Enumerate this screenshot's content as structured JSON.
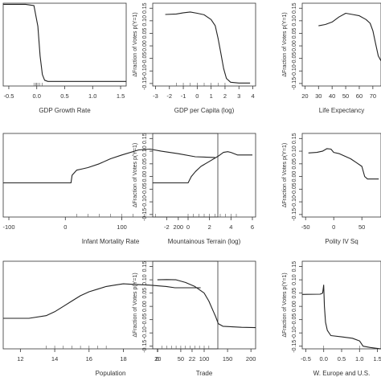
{
  "chart_data": [
    {
      "type": "line",
      "xlabel": "GDP Growth Rate",
      "ylabel": "",
      "xlim": [
        -0.6,
        1.6
      ],
      "ylim": [
        -0.18,
        0.18
      ],
      "xticks": [
        "-0.5",
        "0.0",
        "0.5",
        "1.0",
        "1.5"
      ],
      "xtick_values": [
        -0.5,
        0.0,
        0.5,
        1.0,
        1.5
      ],
      "yticks": [],
      "ytick_values": [],
      "rug": [
        -0.05,
        -0.02,
        0.0,
        0.02,
        0.05,
        0.1
      ],
      "x": [
        -0.6,
        -0.2,
        -0.05,
        0.02,
        0.06,
        0.1,
        0.14,
        0.2,
        1.6
      ],
      "y": [
        0.175,
        0.175,
        0.17,
        0.08,
        -0.05,
        -0.13,
        -0.155,
        -0.16,
        -0.16
      ]
    },
    {
      "type": "line",
      "xlabel": "GDP per Capita (log)",
      "ylabel": "ΔFraction of Votes p(Y=1)",
      "xlim": [
        -3.2,
        4.2
      ],
      "ylim": [
        -0.16,
        0.17
      ],
      "xticks": [
        "-3",
        "-2",
        "-1",
        "0",
        "1",
        "2",
        "3",
        "4"
      ],
      "xtick_values": [
        -3,
        -2,
        -1,
        0,
        1,
        2,
        3,
        4
      ],
      "yticks": [
        "0.15",
        "0.10",
        "0.05",
        "0.00",
        "-0.05",
        "-0.10",
        "-0.15"
      ],
      "ytick_values": [
        0.15,
        0.1,
        0.05,
        0.0,
        -0.05,
        -0.1,
        -0.15
      ],
      "rug": [
        -1.5,
        -1,
        -0.5,
        0,
        0.5,
        1,
        1.5,
        2
      ],
      "x": [
        -2.3,
        -1.5,
        -1.0,
        -0.5,
        0.0,
        0.5,
        1.0,
        1.3,
        1.5,
        1.7,
        1.9,
        2.1,
        2.4,
        3.0,
        3.8
      ],
      "y": [
        0.125,
        0.127,
        0.132,
        0.135,
        0.13,
        0.124,
        0.105,
        0.08,
        0.03,
        -0.03,
        -0.09,
        -0.13,
        -0.145,
        -0.148,
        -0.148
      ]
    },
    {
      "type": "line",
      "xlabel": "Life Expectancy",
      "ylabel": "ΔFraction of Votes p(Y=1)",
      "xlim": [
        18,
        76
      ],
      "ylim": [
        -0.16,
        0.17
      ],
      "xticks": [
        "20",
        "30",
        "40",
        "50",
        "60",
        "70"
      ],
      "xtick_values": [
        20,
        30,
        40,
        50,
        60,
        70
      ],
      "yticks": [
        "0.15",
        "0.10",
        "0.05",
        "0.00",
        "-0.05",
        "-0.10",
        "-0.15"
      ],
      "ytick_values": [
        0.15,
        0.1,
        0.05,
        0.0,
        -0.05,
        -0.1,
        -0.15
      ],
      "rug": [],
      "x": [
        30,
        35,
        40,
        45,
        50,
        55,
        60,
        65,
        68,
        70,
        72,
        74,
        76
      ],
      "y": [
        0.08,
        0.085,
        0.095,
        0.115,
        0.13,
        0.125,
        0.12,
        0.105,
        0.09,
        0.06,
        0.01,
        -0.04,
        -0.06
      ]
    },
    {
      "type": "line",
      "xlabel": "Infant Mortality Rate",
      "ylabel": "",
      "xlim": [
        -110,
        270
      ],
      "ylim": [
        -0.16,
        0.17
      ],
      "xticks": [
        "-100",
        "0",
        "100",
        "200"
      ],
      "xtick_values": [
        -100,
        0,
        100,
        200
      ],
      "yticks": [],
      "ytick_values": [],
      "rug": [
        20,
        40,
        60,
        80,
        100,
        120,
        140,
        160
      ],
      "x": [
        -110,
        10,
        12,
        20,
        30,
        40,
        60,
        80,
        100,
        130,
        150,
        170,
        200,
        230,
        265
      ],
      "y": [
        -0.025,
        -0.025,
        0.005,
        0.025,
        0.03,
        0.035,
        0.05,
        0.07,
        0.085,
        0.105,
        0.108,
        0.1,
        0.09,
        0.078,
        0.075
      ]
    },
    {
      "type": "line",
      "xlabel": "Mountainous Terrain (log)",
      "ylabel": "ΔFraction of Votes p(Y=1)",
      "xlim": [
        -3.3,
        6.3
      ],
      "ylim": [
        -0.16,
        0.17
      ],
      "xticks": [
        "-2",
        "0",
        "2",
        "4",
        "6"
      ],
      "xtick_values": [
        -2,
        0,
        2,
        4,
        6
      ],
      "yticks": [
        "0.15",
        "0.10",
        "0.05",
        "0.00",
        "-0.05",
        "-0.10",
        "-0.15"
      ],
      "ytick_values": [
        0.15,
        0.1,
        0.05,
        0.0,
        -0.05,
        -0.1,
        -0.15
      ],
      "rug": [
        0,
        0.5,
        1,
        1.5,
        2,
        2.5,
        3,
        3.5,
        4,
        4.5
      ],
      "x": [
        -3.3,
        0.0,
        0.3,
        0.7,
        1.2,
        2.0,
        2.8,
        3.3,
        3.7,
        4.0,
        4.6,
        5.0,
        6.0
      ],
      "y": [
        -0.025,
        -0.025,
        0.0,
        0.02,
        0.04,
        0.06,
        0.08,
        0.095,
        0.098,
        0.095,
        0.085,
        0.085,
        0.085
      ]
    },
    {
      "type": "line",
      "xlabel": "Polity IV Sq",
      "ylabel": "ΔFraction of Votes p(Y=1)",
      "xlim": [
        -56,
        84
      ],
      "ylim": [
        -0.16,
        0.17
      ],
      "xticks": [
        "-50",
        "0",
        "50"
      ],
      "xtick_values": [
        -50,
        0,
        50
      ],
      "yticks": [
        "0.15",
        "0.10",
        "0.05",
        "0.00",
        "-0.05",
        "-0.10",
        "-0.15"
      ],
      "ytick_values": [
        0.15,
        0.1,
        0.05,
        0.0,
        -0.05,
        -0.1,
        -0.15
      ],
      "rug": [],
      "x": [
        -45,
        -30,
        -20,
        -12,
        -5,
        0,
        10,
        20,
        30,
        40,
        50,
        55,
        60,
        80
      ],
      "y": [
        0.093,
        0.095,
        0.1,
        0.11,
        0.108,
        0.095,
        0.09,
        0.08,
        0.07,
        0.055,
        0.04,
        0.0,
        -0.01,
        -0.01
      ]
    },
    {
      "type": "line",
      "xlabel": "Population",
      "ylabel": "",
      "xlim": [
        11,
        23.5
      ],
      "ylim": [
        -0.16,
        0.17
      ],
      "xticks": [
        "12",
        "14",
        "16",
        "18",
        "20",
        "22"
      ],
      "xtick_values": [
        12,
        14,
        16,
        18,
        20,
        22
      ],
      "yticks": [],
      "ytick_values": [],
      "rug": [
        13.5,
        14,
        14.5,
        15,
        15.5,
        16,
        16.5,
        17
      ],
      "x": [
        11,
        12.5,
        13.5,
        14,
        14.5,
        15,
        15.5,
        16,
        16.5,
        17,
        17.5,
        18,
        18.5,
        19.5,
        20.5,
        21,
        22.5
      ],
      "y": [
        -0.045,
        -0.045,
        -0.035,
        -0.02,
        0.0,
        0.02,
        0.04,
        0.055,
        0.065,
        0.075,
        0.08,
        0.085,
        0.083,
        0.08,
        0.075,
        0.07,
        0.07
      ]
    },
    {
      "type": "line",
      "xlabel": "Trade",
      "ylabel": "ΔFraction of Votes p(Y=1)",
      "xlim": [
        -10,
        210
      ],
      "ylim": [
        -0.16,
        0.17
      ],
      "xticks": [
        "0",
        "50",
        "100",
        "150",
        "200"
      ],
      "xtick_values": [
        0,
        50,
        100,
        150,
        200
      ],
      "yticks": [
        "0.15",
        "0.10",
        "0.05",
        "0.00",
        "-0.05",
        "-0.10",
        "-0.15"
      ],
      "ytick_values": [
        0.15,
        0.1,
        0.05,
        0.0,
        -0.05,
        -0.1,
        -0.15
      ],
      "rug": [
        10,
        20,
        30,
        40,
        50,
        60,
        70,
        80,
        90,
        100,
        110
      ],
      "x": [
        0,
        20,
        40,
        60,
        80,
        100,
        110,
        120,
        125,
        130,
        140,
        160,
        180,
        210
      ],
      "y": [
        0.1,
        0.101,
        0.1,
        0.09,
        0.075,
        0.05,
        0.02,
        -0.02,
        -0.04,
        -0.065,
        -0.075,
        -0.077,
        -0.079,
        -0.08
      ]
    },
    {
      "type": "line",
      "xlabel": "W. Europe and U.S.",
      "ylabel": "ΔFraction of Votes p(Y=1)",
      "xlim": [
        -0.6,
        1.6
      ],
      "ylim": [
        -0.16,
        0.17
      ],
      "xticks": [
        "-0.5",
        "0.0",
        "0.5",
        "1.0",
        "1.5"
      ],
      "xtick_values": [
        -0.5,
        0.0,
        0.5,
        1.0,
        1.5
      ],
      "yticks": [
        "0.15",
        "0.10",
        "0.05",
        "0.00",
        "-0.05",
        "-0.10",
        "-0.15"
      ],
      "ytick_values": [
        0.15,
        0.1,
        0.05,
        0.0,
        -0.05,
        -0.1,
        -0.15
      ],
      "rug": [
        0.0,
        1.0
      ],
      "x": [
        -0.6,
        -0.1,
        -0.03,
        0.0,
        0.02,
        0.05,
        0.1,
        0.2,
        0.5,
        0.8,
        1.0,
        1.1,
        1.3,
        1.6
      ],
      "y": [
        0.045,
        0.046,
        0.05,
        0.08,
        0.0,
        -0.06,
        -0.09,
        -0.11,
        -0.115,
        -0.12,
        -0.13,
        -0.15,
        -0.155,
        -0.16
      ]
    }
  ]
}
